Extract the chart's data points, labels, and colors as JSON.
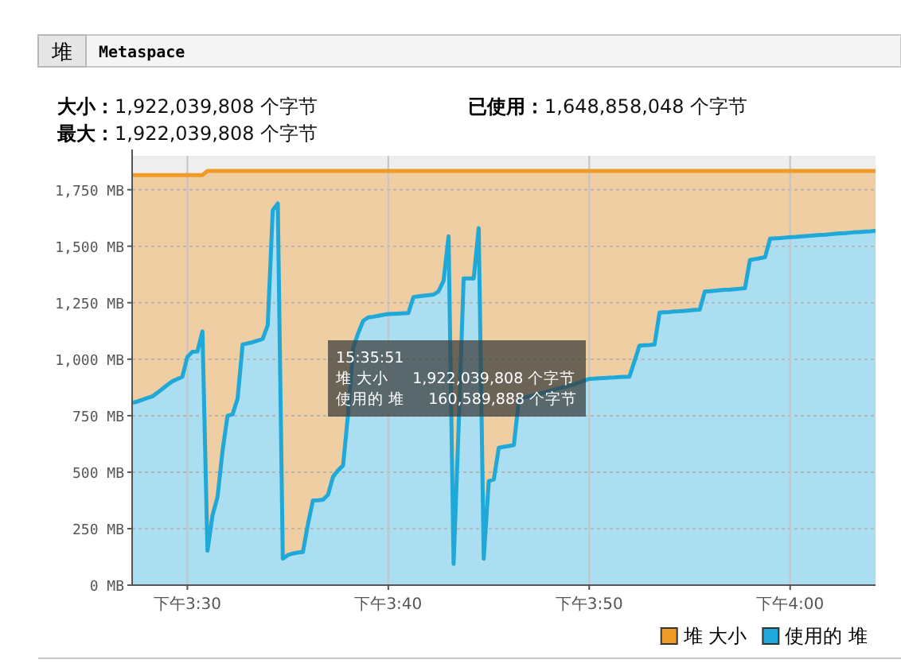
{
  "chart_data": {
    "type": "area",
    "categories": [
      null,
      null,
      null,
      null,
      null,
      null,
      null,
      null,
      null,
      null,
      null,
      "下午3:30",
      null,
      null,
      null,
      null,
      null,
      null,
      null,
      null,
      null,
      null,
      null,
      null,
      null,
      null,
      null,
      null,
      null,
      null,
      null,
      null,
      null,
      null,
      null,
      null,
      null,
      null,
      null,
      null,
      null,
      null,
      null,
      null,
      null,
      null,
      null,
      null,
      null,
      null,
      null,
      "下午3:40",
      null,
      null,
      null,
      null,
      null,
      null,
      null,
      null,
      null,
      null,
      null,
      null,
      null,
      null,
      null,
      null,
      null,
      null,
      null,
      null,
      null,
      null,
      null,
      null,
      null,
      null,
      null,
      null,
      null,
      null,
      null,
      null,
      null,
      null,
      null,
      null,
      null,
      null,
      null,
      "下午3:50",
      null,
      null,
      null,
      null,
      null,
      null,
      null,
      null,
      null,
      null,
      null,
      null,
      null,
      null,
      null,
      null,
      null,
      null,
      null,
      null,
      null,
      null,
      null,
      null,
      null,
      null,
      null,
      null,
      null,
      null,
      null,
      null,
      null,
      null,
      null,
      null,
      null,
      null,
      null,
      "下午4:00",
      null,
      null,
      null,
      null,
      null,
      null,
      null,
      null,
      null,
      null,
      null,
      null,
      null,
      null,
      null,
      null,
      null
    ],
    "ylim": [
      0,
      1900
    ],
    "yticks": [
      {
        "value": 0,
        "label": "0 MB"
      },
      {
        "value": 250,
        "label": "250 MB"
      },
      {
        "value": 500,
        "label": "500 MB"
      },
      {
        "value": 750,
        "label": "750 MB"
      },
      {
        "value": 1000,
        "label": "1,000 MB"
      },
      {
        "value": 1250,
        "label": "1,250 MB"
      },
      {
        "value": 1500,
        "label": "1,500 MB"
      },
      {
        "value": 1750,
        "label": "1,750 MB"
      }
    ],
    "grid": true,
    "legend": "bottom right",
    "series": [
      {
        "name": "堆 大小",
        "color": "#f09a28",
        "values": [
          1815,
          1815,
          1815,
          1815,
          1815,
          1815,
          1815,
          1815,
          1815,
          1815,
          1815,
          1815,
          1815,
          1815,
          1815,
          1833,
          1833,
          1833,
          1833,
          1833,
          1833,
          1833,
          1833,
          1833,
          1833,
          1833,
          1833,
          1833,
          1833,
          1833,
          1833,
          1833,
          1833,
          1833,
          1833,
          1833,
          1833,
          1833,
          1833,
          1833,
          1833,
          1833,
          1833,
          1833,
          1833,
          1833,
          1833,
          1833,
          1833,
          1833,
          1833,
          1833,
          1833,
          1833,
          1833,
          1833,
          1833,
          1833,
          1833,
          1833,
          1833,
          1833,
          1833,
          1833,
          1833,
          1833,
          1833,
          1833,
          1833,
          1833,
          1833,
          1833,
          1833,
          1833,
          1833,
          1833,
          1833,
          1833,
          1833,
          1833,
          1833,
          1833,
          1833,
          1833,
          1833,
          1833,
          1833,
          1833,
          1833,
          1833,
          1833,
          1833,
          1833,
          1833,
          1833,
          1833,
          1833,
          1833,
          1833,
          1833,
          1833,
          1833,
          1833,
          1833,
          1833,
          1833,
          1833,
          1833,
          1833,
          1833,
          1833,
          1833,
          1833,
          1833,
          1833,
          1833,
          1833,
          1833,
          1833,
          1833,
          1833,
          1833,
          1833,
          1833,
          1833,
          1833,
          1833,
          1833,
          1833,
          1833,
          1833,
          1833,
          1833,
          1833,
          1833,
          1833,
          1833,
          1833,
          1833,
          1833,
          1833,
          1833,
          1833,
          1833,
          1833,
          1833,
          1833,
          1833,
          1833
        ]
      },
      {
        "name": "使用的 堆",
        "color": "#1fa8d8",
        "values": [
          807,
          812,
          820,
          828,
          835,
          851,
          868,
          886,
          902,
          912,
          922,
          1010,
          1033,
          1034,
          1123,
          152,
          308,
          390,
          595,
          750,
          756,
          826,
          1065,
          1070,
          1075,
          1082,
          1090,
          1150,
          1660,
          1689,
          117,
          133,
          140,
          144,
          147,
          270,
          375,
          376,
          378,
          400,
          480,
          508,
          530,
          760,
          1050,
          1115,
          1170,
          1185,
          1188,
          1192,
          1196,
          1200,
          1201,
          1202,
          1203,
          1204,
          1275,
          1278,
          1281,
          1283,
          1286,
          1300,
          1347,
          1544,
          94,
          702,
          1357,
          1357,
          1357,
          1580,
          117,
          460,
          468,
          608,
          612,
          616,
          620,
          823,
          830,
          835,
          841,
          847,
          853,
          859,
          865,
          871,
          877,
          883,
          889,
          897,
          905,
          913,
          914,
          916,
          917,
          918,
          919,
          921,
          922,
          923,
          990,
          1060,
          1062,
          1063,
          1065,
          1206,
          1208,
          1209,
          1211,
          1212,
          1214,
          1216,
          1218,
          1219,
          1299,
          1301,
          1303,
          1305,
          1307,
          1308,
          1310,
          1312,
          1314,
          1439,
          1443,
          1447,
          1451,
          1533,
          1535,
          1536,
          1538,
          1540,
          1541,
          1543,
          1545,
          1546,
          1548,
          1550,
          1551,
          1553,
          1555,
          1557,
          1558,
          1560,
          1562,
          1563,
          1565,
          1566,
          1568
        ]
      }
    ],
    "annotations": [
      "堆",
      "Metaspace",
      "大小：1,922,039,808 个字节",
      "已使用：1,648,858,048 个字节",
      "最大：1,922,039,808 个字节",
      "15:35:51",
      "堆 大小     1,922,039,808 个字节",
      "使用的 堆     160,589,888 个字节"
    ]
  }
}
